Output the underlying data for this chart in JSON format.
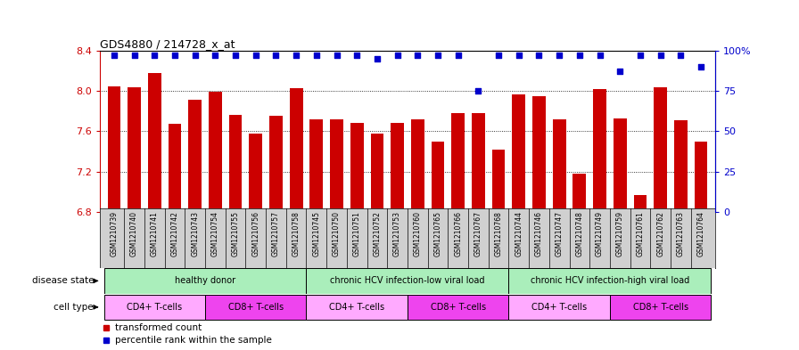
{
  "title": "GDS4880 / 214728_x_at",
  "samples": [
    "GSM1210739",
    "GSM1210740",
    "GSM1210741",
    "GSM1210742",
    "GSM1210743",
    "GSM1210754",
    "GSM1210755",
    "GSM1210756",
    "GSM1210757",
    "GSM1210758",
    "GSM1210745",
    "GSM1210750",
    "GSM1210751",
    "GSM1210752",
    "GSM1210753",
    "GSM1210760",
    "GSM1210765",
    "GSM1210766",
    "GSM1210767",
    "GSM1210768",
    "GSM1210744",
    "GSM1210746",
    "GSM1210747",
    "GSM1210748",
    "GSM1210749",
    "GSM1210759",
    "GSM1210761",
    "GSM1210762",
    "GSM1210763",
    "GSM1210764"
  ],
  "bar_values": [
    8.05,
    8.04,
    8.18,
    7.67,
    7.91,
    7.99,
    7.76,
    7.58,
    7.75,
    8.03,
    7.72,
    7.72,
    7.68,
    7.58,
    7.68,
    7.72,
    7.5,
    7.78,
    7.78,
    7.42,
    7.97,
    7.95,
    7.72,
    7.18,
    8.02,
    7.73,
    6.97,
    8.04,
    7.71,
    7.5
  ],
  "percentile_values": [
    97,
    97,
    97,
    97,
    97,
    97,
    97,
    97,
    97,
    97,
    97,
    97,
    97,
    95,
    97,
    97,
    97,
    97,
    75,
    97,
    97,
    97,
    97,
    97,
    97,
    87,
    97,
    97,
    97,
    90
  ],
  "bar_color": "#CC0000",
  "percentile_color": "#0000CC",
  "ylim_left": [
    6.8,
    8.4
  ],
  "ylim_right": [
    0,
    100
  ],
  "yticks_left": [
    6.8,
    7.2,
    7.6,
    8.0,
    8.4
  ],
  "yticks_right": [
    0,
    25,
    50,
    75,
    100
  ],
  "disease_state_groups": [
    {
      "label": "healthy donor",
      "start": 0,
      "end": 9,
      "color": "#AAEEBB"
    },
    {
      "label": "chronic HCV infection-low viral load",
      "start": 10,
      "end": 19,
      "color": "#AAEEBB"
    },
    {
      "label": "chronic HCV infection-high viral load",
      "start": 20,
      "end": 29,
      "color": "#AAEEBB"
    }
  ],
  "cell_type_groups": [
    {
      "label": "CD4+ T-cells",
      "start": 0,
      "end": 4,
      "color": "#FFAAFF"
    },
    {
      "label": "CD8+ T-cells",
      "start": 5,
      "end": 9,
      "color": "#FF66FF"
    },
    {
      "label": "CD4+ T-cells",
      "start": 10,
      "end": 14,
      "color": "#FFAAFF"
    },
    {
      "label": "CD8+ T-cells",
      "start": 15,
      "end": 19,
      "color": "#FF66FF"
    },
    {
      "label": "CD4+ T-cells",
      "start": 20,
      "end": 24,
      "color": "#FFAAFF"
    },
    {
      "label": "CD8+ T-cells",
      "start": 25,
      "end": 29,
      "color": "#FF66FF"
    }
  ],
  "xtick_bg_color": "#D0D0D0",
  "plot_bg_color": "#FFFFFF",
  "label_disease_state": "disease state",
  "label_cell_type": "cell type",
  "legend_bar_label": "transformed count",
  "legend_pct_label": "percentile rank within the sample"
}
